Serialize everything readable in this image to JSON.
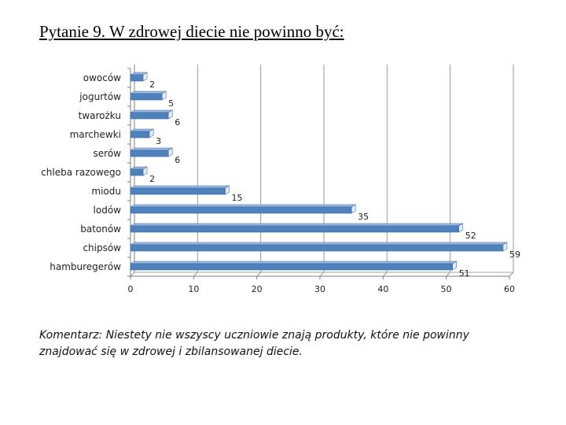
{
  "page": {
    "title": "Pytanie 9. W zdrowej diecie nie powinno być:",
    "comment": "Komentarz: Niestety nie wszyscy uczniowie znają produkty, które nie powinny znajdować się w zdrowej i zbilansowanej diecie."
  },
  "chart_data": {
    "type": "bar",
    "orientation": "horizontal",
    "categories": [
      "owoców",
      "jogurtów",
      "twarożku",
      "marchewki",
      "serów",
      "chleba razowego",
      "miodu",
      "lodów",
      "batonów",
      "chipsów",
      "hamburegerów"
    ],
    "values": [
      2,
      5,
      6,
      3,
      6,
      2,
      15,
      35,
      52,
      59,
      51
    ],
    "value_labels": [
      "2",
      "5",
      "6",
      "3",
      "6",
      "2",
      "15",
      "35",
      "52",
      "59",
      "51"
    ],
    "xlim": [
      0,
      60
    ],
    "xticks": [
      "0",
      "10",
      "20",
      "30",
      "40",
      "50",
      "60"
    ],
    "grid": "vertical",
    "bar_color": "#4f81bd",
    "legend": "none"
  }
}
